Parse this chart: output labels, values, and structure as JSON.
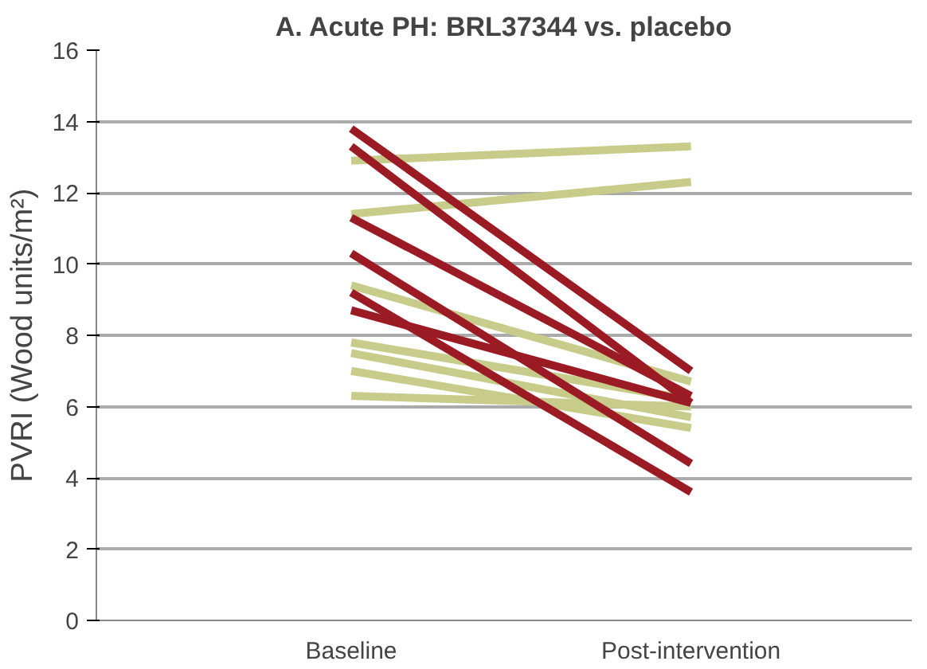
{
  "chart_data": {
    "type": "line",
    "title": "A. Acute PH: BRL37344 vs. placebo",
    "ylabel": "PVRI (Wood units/m²)",
    "categories": [
      "Baseline",
      "Post-intervention"
    ],
    "ylim": [
      0,
      16
    ],
    "yticks": [
      0,
      2,
      4,
      6,
      8,
      10,
      12,
      14,
      16
    ],
    "grid": "y",
    "marker": "none",
    "line_style": "solid",
    "series": [
      {
        "color": "#c8cc8a",
        "values": [
          12.9,
          13.3
        ]
      },
      {
        "color": "#c8cc8a",
        "values": [
          11.4,
          12.3
        ]
      },
      {
        "color": "#c8cc8a",
        "values": [
          9.4,
          6.7
        ]
      },
      {
        "color": "#c8cc8a",
        "values": [
          7.8,
          6.2
        ]
      },
      {
        "color": "#c8cc8a",
        "values": [
          7.5,
          5.7
        ]
      },
      {
        "color": "#c8cc8a",
        "values": [
          7.0,
          5.4
        ]
      },
      {
        "color": "#c8cc8a",
        "values": [
          6.3,
          6.0
        ]
      },
      {
        "color": "#9b1b24",
        "values": [
          13.8,
          7.0
        ]
      },
      {
        "color": "#9b1b24",
        "values": [
          13.3,
          6.1
        ]
      },
      {
        "color": "#9b1b24",
        "values": [
          11.3,
          6.3
        ]
      },
      {
        "color": "#9b1b24",
        "values": [
          10.3,
          4.4
        ]
      },
      {
        "color": "#9b1b24",
        "values": [
          9.2,
          3.6
        ]
      },
      {
        "color": "#9b1b24",
        "values": [
          8.7,
          6.1
        ]
      }
    ]
  }
}
